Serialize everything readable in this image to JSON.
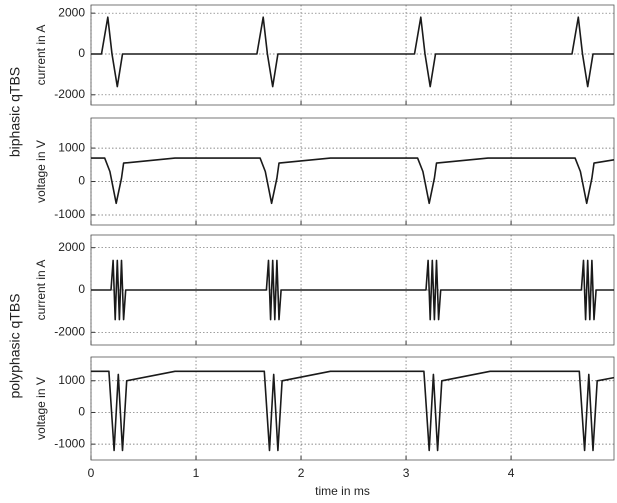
{
  "chart_data": [
    {
      "type": "line",
      "group_label": "biphasic qTBS",
      "ylabel": "current in A",
      "color": "#1a1a1a",
      "x": [
        0,
        0.1,
        0.16,
        0.2,
        0.25,
        0.3,
        1.58,
        1.64,
        1.68,
        1.73,
        1.78,
        3.08,
        3.14,
        3.18,
        3.23,
        3.28,
        4.58,
        4.64,
        4.68,
        4.73,
        4.78,
        4.98
      ],
      "values": [
        0,
        0,
        1800,
        0,
        -1600,
        0,
        0,
        1800,
        0,
        -1600,
        0,
        0,
        1800,
        0,
        -1600,
        0,
        0,
        1800,
        0,
        -1600,
        0,
        0
      ],
      "xlim": [
        0,
        4.98
      ],
      "xticks": [
        0,
        1,
        2,
        3,
        4
      ],
      "ylim": [
        -2500,
        2400
      ],
      "yticks": [
        -2000,
        0,
        2000
      ],
      "grid": true
    },
    {
      "type": "line",
      "ylabel": "voltage in V",
      "color": "#1a1a1a",
      "x": [
        0,
        0.13,
        0.18,
        0.24,
        0.29,
        0.31,
        0.8,
        1.61,
        1.66,
        1.72,
        1.77,
        1.79,
        2.28,
        3.11,
        3.16,
        3.22,
        3.27,
        3.29,
        3.78,
        4.61,
        4.66,
        4.72,
        4.77,
        4.79,
        4.98
      ],
      "values": [
        700,
        700,
        300,
        -650,
        100,
        550,
        700,
        700,
        300,
        -650,
        100,
        550,
        700,
        700,
        300,
        -650,
        100,
        550,
        700,
        700,
        300,
        -650,
        100,
        550,
        650
      ],
      "xlim": [
        0,
        4.98
      ],
      "xticks": [
        0,
        1,
        2,
        3,
        4
      ],
      "ylim": [
        -1300,
        1900
      ],
      "yticks": [
        -1000,
        0,
        1000
      ],
      "grid": true
    },
    {
      "type": "line",
      "group_label": "polyphasic qTBS",
      "ylabel": "current in A",
      "color": "#1a1a1a",
      "x": [
        0,
        0.19,
        0.21,
        0.23,
        0.25,
        0.27,
        0.29,
        0.31,
        0.33,
        1.67,
        1.69,
        1.71,
        1.73,
        1.75,
        1.77,
        1.79,
        1.81,
        3.19,
        3.21,
        3.23,
        3.25,
        3.27,
        3.29,
        3.31,
        3.33,
        4.67,
        4.69,
        4.71,
        4.73,
        4.75,
        4.77,
        4.79,
        4.81,
        4.98
      ],
      "values": [
        0,
        0,
        1400,
        -1400,
        1400,
        -1400,
        1400,
        -1400,
        0,
        0,
        1400,
        -1400,
        1400,
        -1400,
        1400,
        -1400,
        0,
        0,
        1400,
        -1400,
        1400,
        -1400,
        1400,
        -1400,
        0,
        0,
        1400,
        -1400,
        1400,
        -1400,
        1400,
        -1400,
        0,
        0
      ],
      "xlim": [
        0,
        4.98
      ],
      "xticks": [
        0,
        1,
        2,
        3,
        4
      ],
      "ylim": [
        -2600,
        2600
      ],
      "yticks": [
        -2000,
        0,
        2000
      ],
      "grid": true
    },
    {
      "type": "line",
      "ylabel": "voltage in V",
      "xlabel": "time in ms",
      "color": "#1a1a1a",
      "x": [
        0,
        0.17,
        0.22,
        0.26,
        0.3,
        0.34,
        0.8,
        1.65,
        1.7,
        1.74,
        1.78,
        1.82,
        2.28,
        3.17,
        3.22,
        3.26,
        3.3,
        3.34,
        3.8,
        4.65,
        4.7,
        4.74,
        4.78,
        4.82,
        4.98
      ],
      "values": [
        1300,
        1300,
        -1200,
        1200,
        -1200,
        1000,
        1300,
        1300,
        -1200,
        1200,
        -1200,
        1000,
        1300,
        1300,
        -1200,
        1200,
        -1200,
        1000,
        1300,
        1300,
        -1200,
        1200,
        -1200,
        1000,
        1100
      ],
      "xlim": [
        0,
        4.98
      ],
      "xticks": [
        0,
        1,
        2,
        3,
        4
      ],
      "ylim": [
        -1500,
        1750
      ],
      "yticks": [
        -1000,
        0,
        1000
      ],
      "grid": true
    }
  ]
}
